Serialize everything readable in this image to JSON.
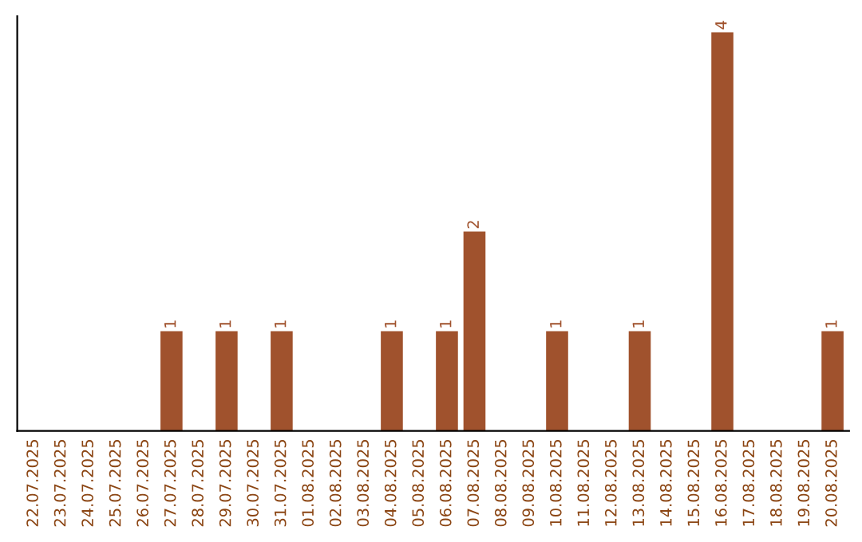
{
  "chart_data": {
    "type": "bar",
    "categories": [
      "22.07.2025",
      "23.07.2025",
      "24.07.2025",
      "25.07.2025",
      "26.07.2025",
      "27.07.2025",
      "28.07.2025",
      "29.07.2025",
      "30.07.2025",
      "31.07.2025",
      "01.08.2025",
      "02.08.2025",
      "03.08.2025",
      "04.08.2025",
      "05.08.2025",
      "06.08.2025",
      "07.08.2025",
      "08.08.2025",
      "09.08.2025",
      "10.08.2025",
      "11.08.2025",
      "12.08.2025",
      "13.08.2025",
      "14.08.2025",
      "15.08.2025",
      "16.08.2025",
      "17.08.2025",
      "18.08.2025",
      "19.08.2025",
      "20.08.2025"
    ],
    "values": [
      0,
      0,
      0,
      0,
      0,
      1,
      0,
      1,
      0,
      1,
      0,
      0,
      0,
      1,
      0,
      1,
      2,
      0,
      0,
      1,
      0,
      0,
      1,
      0,
      0,
      4,
      0,
      0,
      0,
      1
    ],
    "value_labels": [
      null,
      null,
      null,
      null,
      null,
      "1",
      null,
      "1",
      null,
      "1",
      null,
      null,
      null,
      "1",
      null,
      "1",
      "2",
      null,
      null,
      "1",
      null,
      null,
      "1",
      null,
      null,
      "4",
      null,
      null,
      null,
      "1"
    ],
    "color": "#a0522d",
    "tick_labels": "x"
  }
}
